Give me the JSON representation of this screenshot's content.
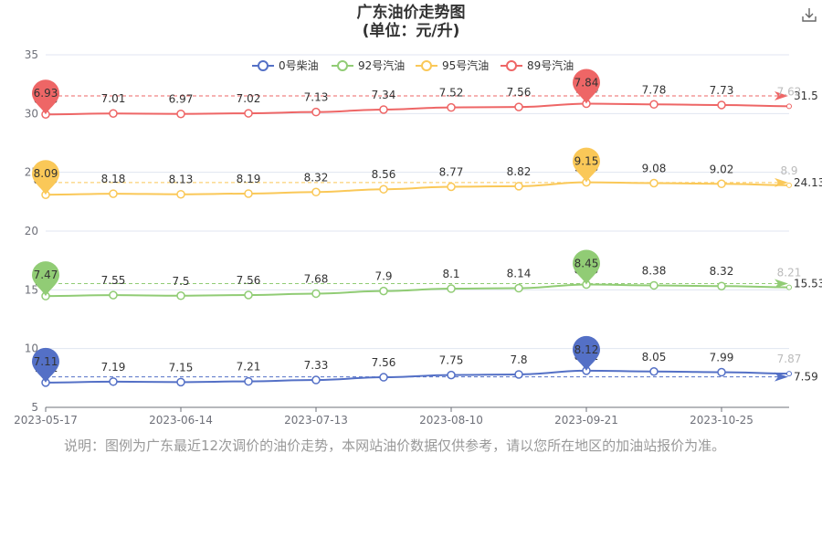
{
  "title": {
    "line1": "广东油价走势图",
    "line2": "(单位：元/升)"
  },
  "toolbar": {
    "download_icon": "download-icon"
  },
  "note": "说明：图例为广东最近12次调价的油价走势，本网站油价数据仅供参考，请以您所在地区的加油站报价为准。",
  "colors": {
    "diesel0": "#5470c6",
    "gas92": "#91cc75",
    "gas95": "#fac858",
    "gas89": "#ee6666",
    "grid": "#e0e6f1",
    "axis": "#6e7079"
  },
  "chart_data": {
    "type": "line",
    "x": [
      "2023-05-17",
      "2023-05-31",
      "2023-06-14",
      "2023-06-28",
      "2023-07-13",
      "2023-07-27",
      "2023-08-10",
      "2023-08-24",
      "2023-09-21",
      "2023-10-08",
      "2023-10-25",
      "2023-11-07"
    ],
    "x_tick_labels": [
      "2023-05-17",
      "2023-06-14",
      "2023-07-13",
      "2023-08-10",
      "2023-09-21",
      "2023-10-25"
    ],
    "y_tick_labels": [
      "5",
      "10",
      "15",
      "20",
      "25",
      "30",
      "35"
    ],
    "ylim": [
      5,
      35
    ],
    "grid": true,
    "legend_position": "top-center",
    "series": [
      {
        "key": "diesel0",
        "name": "0号柴油",
        "offset": 0,
        "prices": [
          7.11,
          7.19,
          7.15,
          7.21,
          7.33,
          7.56,
          7.75,
          7.8,
          8.12,
          8.05,
          7.99,
          7.87
        ],
        "labels": [
          "7.11",
          "7.19",
          "7.15",
          "7.21",
          "7.33",
          "7.56",
          "7.75",
          "7.8",
          "8.12",
          "8.05",
          "7.99",
          "7.87"
        ],
        "pin_min": {
          "index": 0,
          "label": "7.11"
        },
        "pin_max": {
          "index": 8,
          "label": "8.12"
        },
        "average": {
          "y": 7.59,
          "label": "7.59"
        }
      },
      {
        "key": "gas92",
        "name": "92号汽油",
        "offset": 7,
        "prices": [
          7.47,
          7.55,
          7.5,
          7.56,
          7.68,
          7.9,
          8.1,
          8.14,
          8.45,
          8.38,
          8.32,
          8.21
        ],
        "labels": [
          "7.47",
          "7.55",
          "7.5",
          "7.56",
          "7.68",
          "7.9",
          "8.1",
          "8.14",
          "8.45",
          "8.38",
          "8.32",
          "8.21"
        ],
        "pin_min": {
          "index": 0,
          "label": "7.47"
        },
        "pin_max": {
          "index": 8,
          "label": "8.45"
        },
        "average": {
          "y": 15.53,
          "label": "15.53"
        }
      },
      {
        "key": "gas95",
        "name": "95号汽油",
        "offset": 15,
        "prices": [
          8.09,
          8.18,
          8.13,
          8.19,
          8.32,
          8.56,
          8.77,
          8.82,
          9.15,
          9.08,
          9.02,
          8.9
        ],
        "labels": [
          "8.09",
          "8.18",
          "8.13",
          "8.19",
          "8.32",
          "8.56",
          "8.77",
          "8.82",
          "9.15",
          "9.08",
          "9.02",
          "8.9"
        ],
        "pin_min": {
          "index": 0,
          "label": "8.09"
        },
        "pin_max": {
          "index": 8,
          "label": "9.15"
        },
        "average": {
          "y": 24.13,
          "label": "24.13"
        }
      },
      {
        "key": "gas89",
        "name": "89号汽油",
        "offset": 23,
        "prices": [
          6.93,
          7.01,
          6.97,
          7.02,
          7.13,
          7.34,
          7.52,
          7.56,
          7.84,
          7.78,
          7.73,
          7.62
        ],
        "labels": [
          "6.93",
          "7.01",
          "6.97",
          "7.02",
          "7.13",
          "7.34",
          "7.52",
          "7.56",
          "7.84",
          "7.78",
          "7.73",
          "7.62"
        ],
        "pin_min": {
          "index": 0,
          "label": "6.93"
        },
        "pin_max": {
          "index": 8,
          "label": "7.84"
        },
        "average": {
          "y": 31.5,
          "label": "31.5"
        }
      }
    ]
  }
}
